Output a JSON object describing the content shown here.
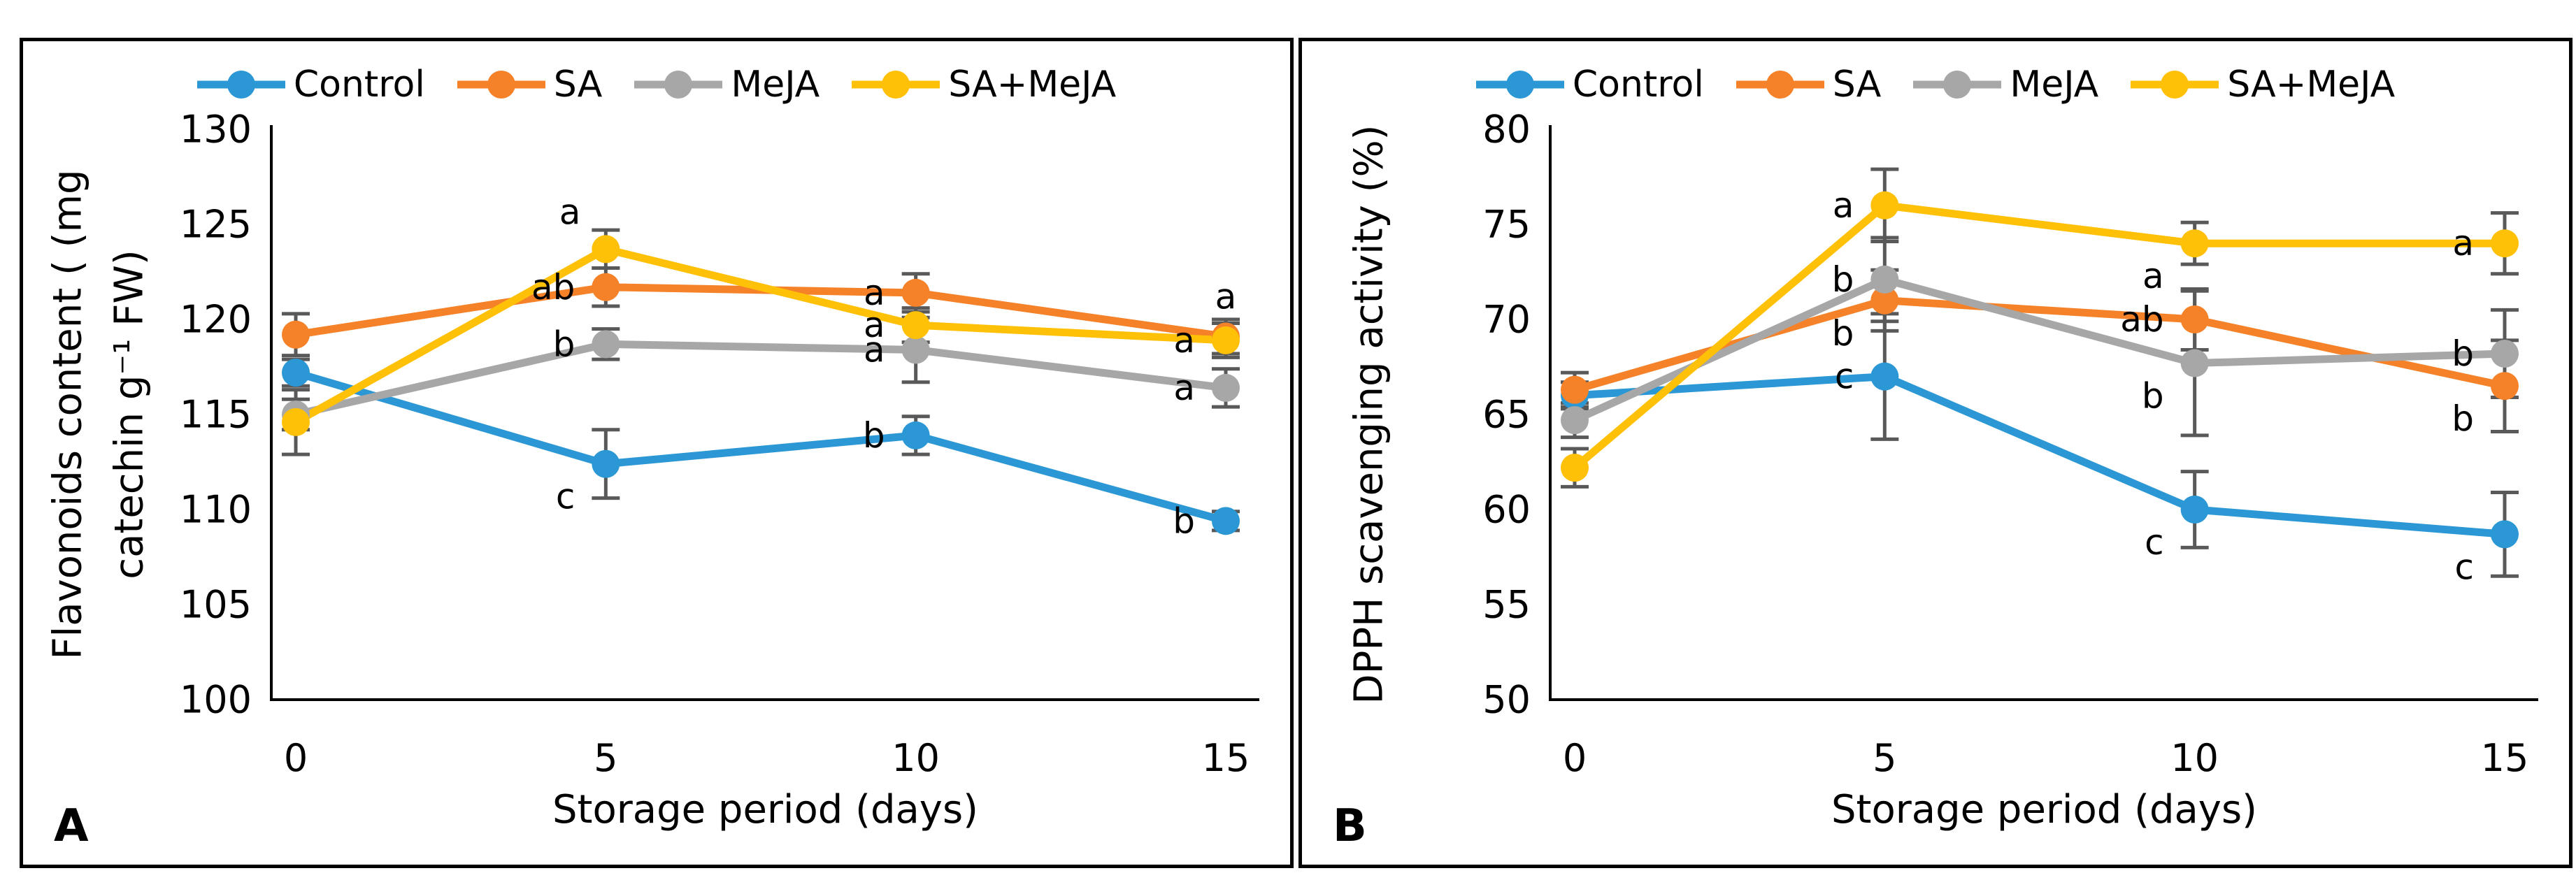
{
  "chart_data": [
    {
      "type": "line",
      "panel_letter": "A",
      "xlabel": "Storage period (days)",
      "ylabel": "Flavonoids content ( (mg catechin g⁻¹ FW)",
      "ylabel_lines": [
        "Flavonoids content ( (mg",
        "catechin g⁻¹ FW)"
      ],
      "x": [
        0,
        5,
        10,
        15
      ],
      "xlim": [
        0,
        15
      ],
      "xticks": [
        0,
        5,
        10,
        15
      ],
      "ylim": [
        100,
        130
      ],
      "yticks": [
        100,
        105,
        110,
        115,
        120,
        125,
        130
      ],
      "grid": false,
      "legend_position": "top-center",
      "error_bar_color": "#595959",
      "series": [
        {
          "name": "Control",
          "color": "#2B98D5",
          "values": [
            117.2,
            112.4,
            113.9,
            109.4
          ],
          "errors": [
            0.7,
            1.8,
            1.0,
            0.5
          ],
          "sig_letters": [
            "",
            "c",
            "b",
            "b"
          ],
          "letter_pos": [
            "",
            "below-left",
            "left",
            "left"
          ]
        },
        {
          "name": "SA",
          "color": "#F58229",
          "values": [
            119.2,
            121.7,
            121.4,
            119.1
          ],
          "errors": [
            1.1,
            1.0,
            1.0,
            0.9
          ],
          "sig_letters": [
            "",
            "ab",
            "a",
            "a"
          ],
          "letter_pos": [
            "",
            "left",
            "left",
            "above"
          ]
        },
        {
          "name": "MeJA",
          "color": "#A7A7A7",
          "values": [
            115.0,
            118.7,
            118.4,
            116.4
          ],
          "errors": [
            0.8,
            0.8,
            1.7,
            1.0
          ],
          "sig_letters": [
            "",
            "b",
            "a",
            "a"
          ],
          "letter_pos": [
            "",
            "left",
            "left",
            "left"
          ]
        },
        {
          "name": "SA+MeJA",
          "color": "#FFC008",
          "values": [
            114.6,
            123.7,
            119.7,
            118.9
          ],
          "errors": [
            1.7,
            1.0,
            0.9,
            0.9
          ],
          "sig_letters": [
            "",
            "a",
            "a",
            "a"
          ],
          "letter_pos": [
            "",
            "above-left",
            "left",
            "left"
          ]
        }
      ]
    },
    {
      "type": "line",
      "panel_letter": "B",
      "xlabel": "Storage period (days)",
      "ylabel": "DPPH scavenging activity (%)",
      "ylabel_lines": [
        "DPPH scavenging activity (%)"
      ],
      "x": [
        0,
        5,
        10,
        15
      ],
      "xlim": [
        0,
        15
      ],
      "xticks": [
        0,
        5,
        10,
        15
      ],
      "ylim": [
        50,
        80
      ],
      "yticks": [
        50,
        55,
        60,
        65,
        70,
        75,
        80
      ],
      "grid": false,
      "legend_position": "top-center",
      "error_bar_color": "#595959",
      "series": [
        {
          "name": "Control",
          "color": "#2B98D5",
          "values": [
            66.0,
            67.0,
            60.0,
            58.7
          ],
          "errors": [
            0.7,
            3.3,
            2.0,
            2.2
          ],
          "sig_letters": [
            "",
            "c",
            "c",
            "c"
          ],
          "letter_pos": [
            "",
            "left",
            "below-left",
            "below-left"
          ]
        },
        {
          "name": "SA",
          "color": "#F58229",
          "values": [
            66.3,
            71.0,
            70.0,
            66.5
          ],
          "errors": [
            0.9,
            1.6,
            1.6,
            2.4
          ],
          "sig_letters": [
            "",
            "b",
            "ab",
            "b"
          ],
          "letter_pos": [
            "",
            "below-left",
            "left",
            "below-left"
          ]
        },
        {
          "name": "MeJA",
          "color": "#A7A7A7",
          "values": [
            64.7,
            72.1,
            67.7,
            68.2
          ],
          "errors": [
            0.9,
            2.2,
            3.8,
            2.3
          ],
          "sig_letters": [
            "",
            "b",
            "b",
            "b"
          ],
          "letter_pos": [
            "",
            "left",
            "below-left",
            "left"
          ]
        },
        {
          "name": "SA+MeJA",
          "color": "#FFC008",
          "values": [
            62.2,
            76.0,
            74.0,
            74.0
          ],
          "errors": [
            1.0,
            1.9,
            1.1,
            1.6
          ],
          "sig_letters": [
            "",
            "a",
            "a",
            "a"
          ],
          "letter_pos": [
            "",
            "left",
            "below-left",
            "left"
          ]
        }
      ]
    }
  ]
}
